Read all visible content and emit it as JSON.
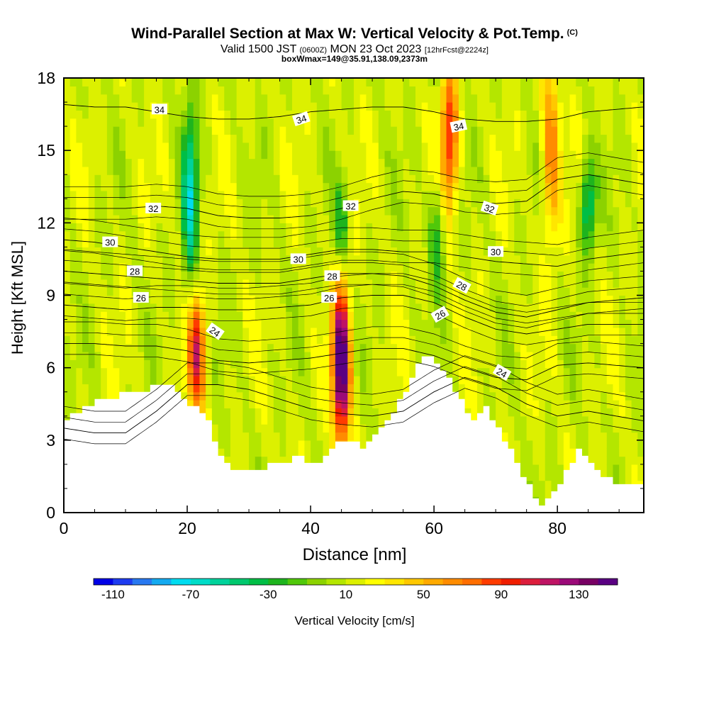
{
  "title": {
    "main": "Wind-Parallel Section at Max W: Vertical Velocity & Pot.Temp.",
    "copyright": "(C)",
    "valid_prefix": "Valid 1500 JST",
    "valid_z": "(0600Z)",
    "valid_date": "MON 23 Oct 2023",
    "forecast": "[12hrFcst@2224z]",
    "boxline": "boxWmax=149@35.91,138.09,2373m"
  },
  "chart_data": {
    "type": "heatmap",
    "title": "Wind-Parallel Section at Max W: Vertical Velocity & Pot.Temp.",
    "xlabel": "Distance [nm]",
    "ylabel": "Height [Kft MSL]",
    "xlim": [
      0,
      94
    ],
    "ylim": [
      0,
      18
    ],
    "x_ticks": [
      "0",
      "20",
      "40",
      "60",
      "80"
    ],
    "y_ticks": [
      "0",
      "3",
      "6",
      "9",
      "12",
      "15",
      "18"
    ],
    "colorbar": {
      "label": "Vertical Velocity [cm/s]",
      "tick_labels": [
        "-110",
        "-70",
        "-30",
        "10",
        "50",
        "90",
        "130"
      ],
      "range": [
        -120,
        150
      ],
      "step": 10,
      "colors": [
        "#0000e6",
        "#1e3cf0",
        "#2878f0",
        "#14aaf0",
        "#00dcf0",
        "#00dcc8",
        "#00d29b",
        "#00c86e",
        "#00be46",
        "#1eb41e",
        "#50c80a",
        "#8cd200",
        "#b4e600",
        "#dcf000",
        "#ffff00",
        "#ffe600",
        "#ffc800",
        "#ffaa00",
        "#ff8c00",
        "#ff6e00",
        "#ff3c00",
        "#f01e00",
        "#dc1e3c",
        "#be1464",
        "#9b0a78",
        "#780064",
        "#5a0082"
      ]
    },
    "updraft_cores": [
      {
        "x": 21.5,
        "y_range": [
          4.5,
          8.5
        ],
        "peak": 90
      },
      {
        "x": 45.0,
        "y_range": [
          3.5,
          8.7
        ],
        "peak": 149
      },
      {
        "x": 62.5,
        "y_range": [
          13.0,
          18.0
        ],
        "peak": 80
      },
      {
        "x": 79.0,
        "y_range": [
          12.0,
          18.0
        ],
        "peak": 60
      }
    ],
    "downdraft_cores": [
      {
        "x": 20.5,
        "y_range": [
          10.0,
          16.0
        ],
        "peak": -70
      },
      {
        "x": 45.0,
        "y_range": [
          11.0,
          13.0
        ],
        "peak": -40
      },
      {
        "x": 60.5,
        "y_range": [
          10.0,
          13.0
        ],
        "peak": -40
      },
      {
        "x": 85.0,
        "y_range": [
          11.5,
          14.0
        ],
        "peak": -60
      }
    ],
    "terrain_kft": {
      "x": [
        0,
        2,
        5,
        9,
        12,
        15,
        17,
        19,
        21,
        23,
        25,
        28,
        31,
        34,
        38,
        40,
        42,
        44,
        46,
        48,
        50,
        53,
        56,
        58,
        60,
        62,
        64,
        66,
        68,
        70,
        72,
        74,
        76,
        77,
        79,
        81,
        83,
        85,
        87,
        89,
        91,
        94
      ],
      "top": [
        3.9,
        4.2,
        4.6,
        4.9,
        5.0,
        5.3,
        5.2,
        4.7,
        4.4,
        3.8,
        2.3,
        1.7,
        1.7,
        2.1,
        2.3,
        2.1,
        2.3,
        2.8,
        3.0,
        2.7,
        3.1,
        4.2,
        5.6,
        6.5,
        6.2,
        5.5,
        4.6,
        3.9,
        4.4,
        3.5,
        2.6,
        1.4,
        0.7,
        0.4,
        0.8,
        1.8,
        2.6,
        2.1,
        1.6,
        1.3,
        1.3,
        1.3
      ]
    },
    "isentropes": [
      {
        "theta": 22,
        "y": [
          3.5,
          3.3,
          3.3,
          4.2,
          5.3,
          5.3,
          5.1,
          4.7,
          4.3,
          4.1,
          4.0,
          4.2,
          5.0,
          5.6,
          5.2,
          4.5,
          4.0,
          4.2,
          3.8
        ]
      },
      {
        "theta": 24,
        "y": [
          7.0,
          7.0,
          6.9,
          6.9,
          6.7,
          6.3,
          6.2,
          6.3,
          6.4,
          6.6,
          6.8,
          6.8,
          6.5,
          6.0,
          5.6,
          5.5,
          6.1,
          6.2,
          6.0
        ]
      },
      {
        "theta": 26,
        "y": [
          8.6,
          8.5,
          8.4,
          8.5,
          8.5,
          8.4,
          8.4,
          8.5,
          8.6,
          8.9,
          9.0,
          9.0,
          8.7,
          8.1,
          7.6,
          7.4,
          7.6,
          7.8,
          7.8
        ]
      },
      {
        "theta": 28,
        "y": [
          10.0,
          9.9,
          9.8,
          9.7,
          9.6,
          9.5,
          9.5,
          9.5,
          9.7,
          9.9,
          9.9,
          9.8,
          9.4,
          8.8,
          8.3,
          8.1,
          8.4,
          8.7,
          8.9
        ]
      },
      {
        "theta": 30,
        "y": [
          11.3,
          11.2,
          11.0,
          10.8,
          10.6,
          10.5,
          10.5,
          10.5,
          10.7,
          10.9,
          10.9,
          10.8,
          10.8,
          10.6,
          10.4,
          10.3,
          10.2,
          10.5,
          10.8
        ]
      },
      {
        "theta": 32,
        "y": [
          12.6,
          12.6,
          12.6,
          12.7,
          12.6,
          12.3,
          12.2,
          12.2,
          12.3,
          12.6,
          13.0,
          13.3,
          13.2,
          12.9,
          12.8,
          12.9,
          13.8,
          14.0,
          13.6
        ]
      },
      {
        "theta": 34,
        "y": [
          16.9,
          16.8,
          16.8,
          16.6,
          16.4,
          16.3,
          16.3,
          16.4,
          16.6,
          16.7,
          16.8,
          16.8,
          16.6,
          16.3,
          16.2,
          16.2,
          16.3,
          16.6,
          16.8
        ]
      }
    ],
    "isentrope_x": [
      0,
      5,
      10,
      15,
      20,
      25,
      30,
      35,
      40,
      45,
      50,
      55,
      60,
      65,
      70,
      75,
      80,
      85,
      94
    ],
    "contour_labels": [
      {
        "text": "34",
        "x": 15.5,
        "y": 16.7,
        "angle": 0
      },
      {
        "text": "34",
        "x": 38.5,
        "y": 16.3,
        "angle": -18
      },
      {
        "text": "34",
        "x": 64.0,
        "y": 16.0,
        "angle": -12
      },
      {
        "text": "32",
        "x": 14.5,
        "y": 12.6,
        "angle": 0
      },
      {
        "text": "32",
        "x": 46.5,
        "y": 12.7,
        "angle": 0
      },
      {
        "text": "32",
        "x": 69.0,
        "y": 12.6,
        "angle": 18
      },
      {
        "text": "30",
        "x": 7.5,
        "y": 11.2,
        "angle": 0
      },
      {
        "text": "30",
        "x": 38.0,
        "y": 10.5,
        "angle": 0
      },
      {
        "text": "30",
        "x": 70.0,
        "y": 10.8,
        "angle": 0
      },
      {
        "text": "28",
        "x": 11.5,
        "y": 10.0,
        "angle": 0
      },
      {
        "text": "28",
        "x": 43.5,
        "y": 9.8,
        "angle": 0
      },
      {
        "text": "28",
        "x": 64.5,
        "y": 9.4,
        "angle": 28
      },
      {
        "text": "26",
        "x": 12.5,
        "y": 8.9,
        "angle": 0
      },
      {
        "text": "26",
        "x": 43.0,
        "y": 8.9,
        "angle": 0
      },
      {
        "text": "26",
        "x": 61.0,
        "y": 8.2,
        "angle": -30
      },
      {
        "text": "24",
        "x": 24.5,
        "y": 7.5,
        "angle": 35
      },
      {
        "text": "24",
        "x": 71.0,
        "y": 5.8,
        "angle": 30
      }
    ]
  }
}
